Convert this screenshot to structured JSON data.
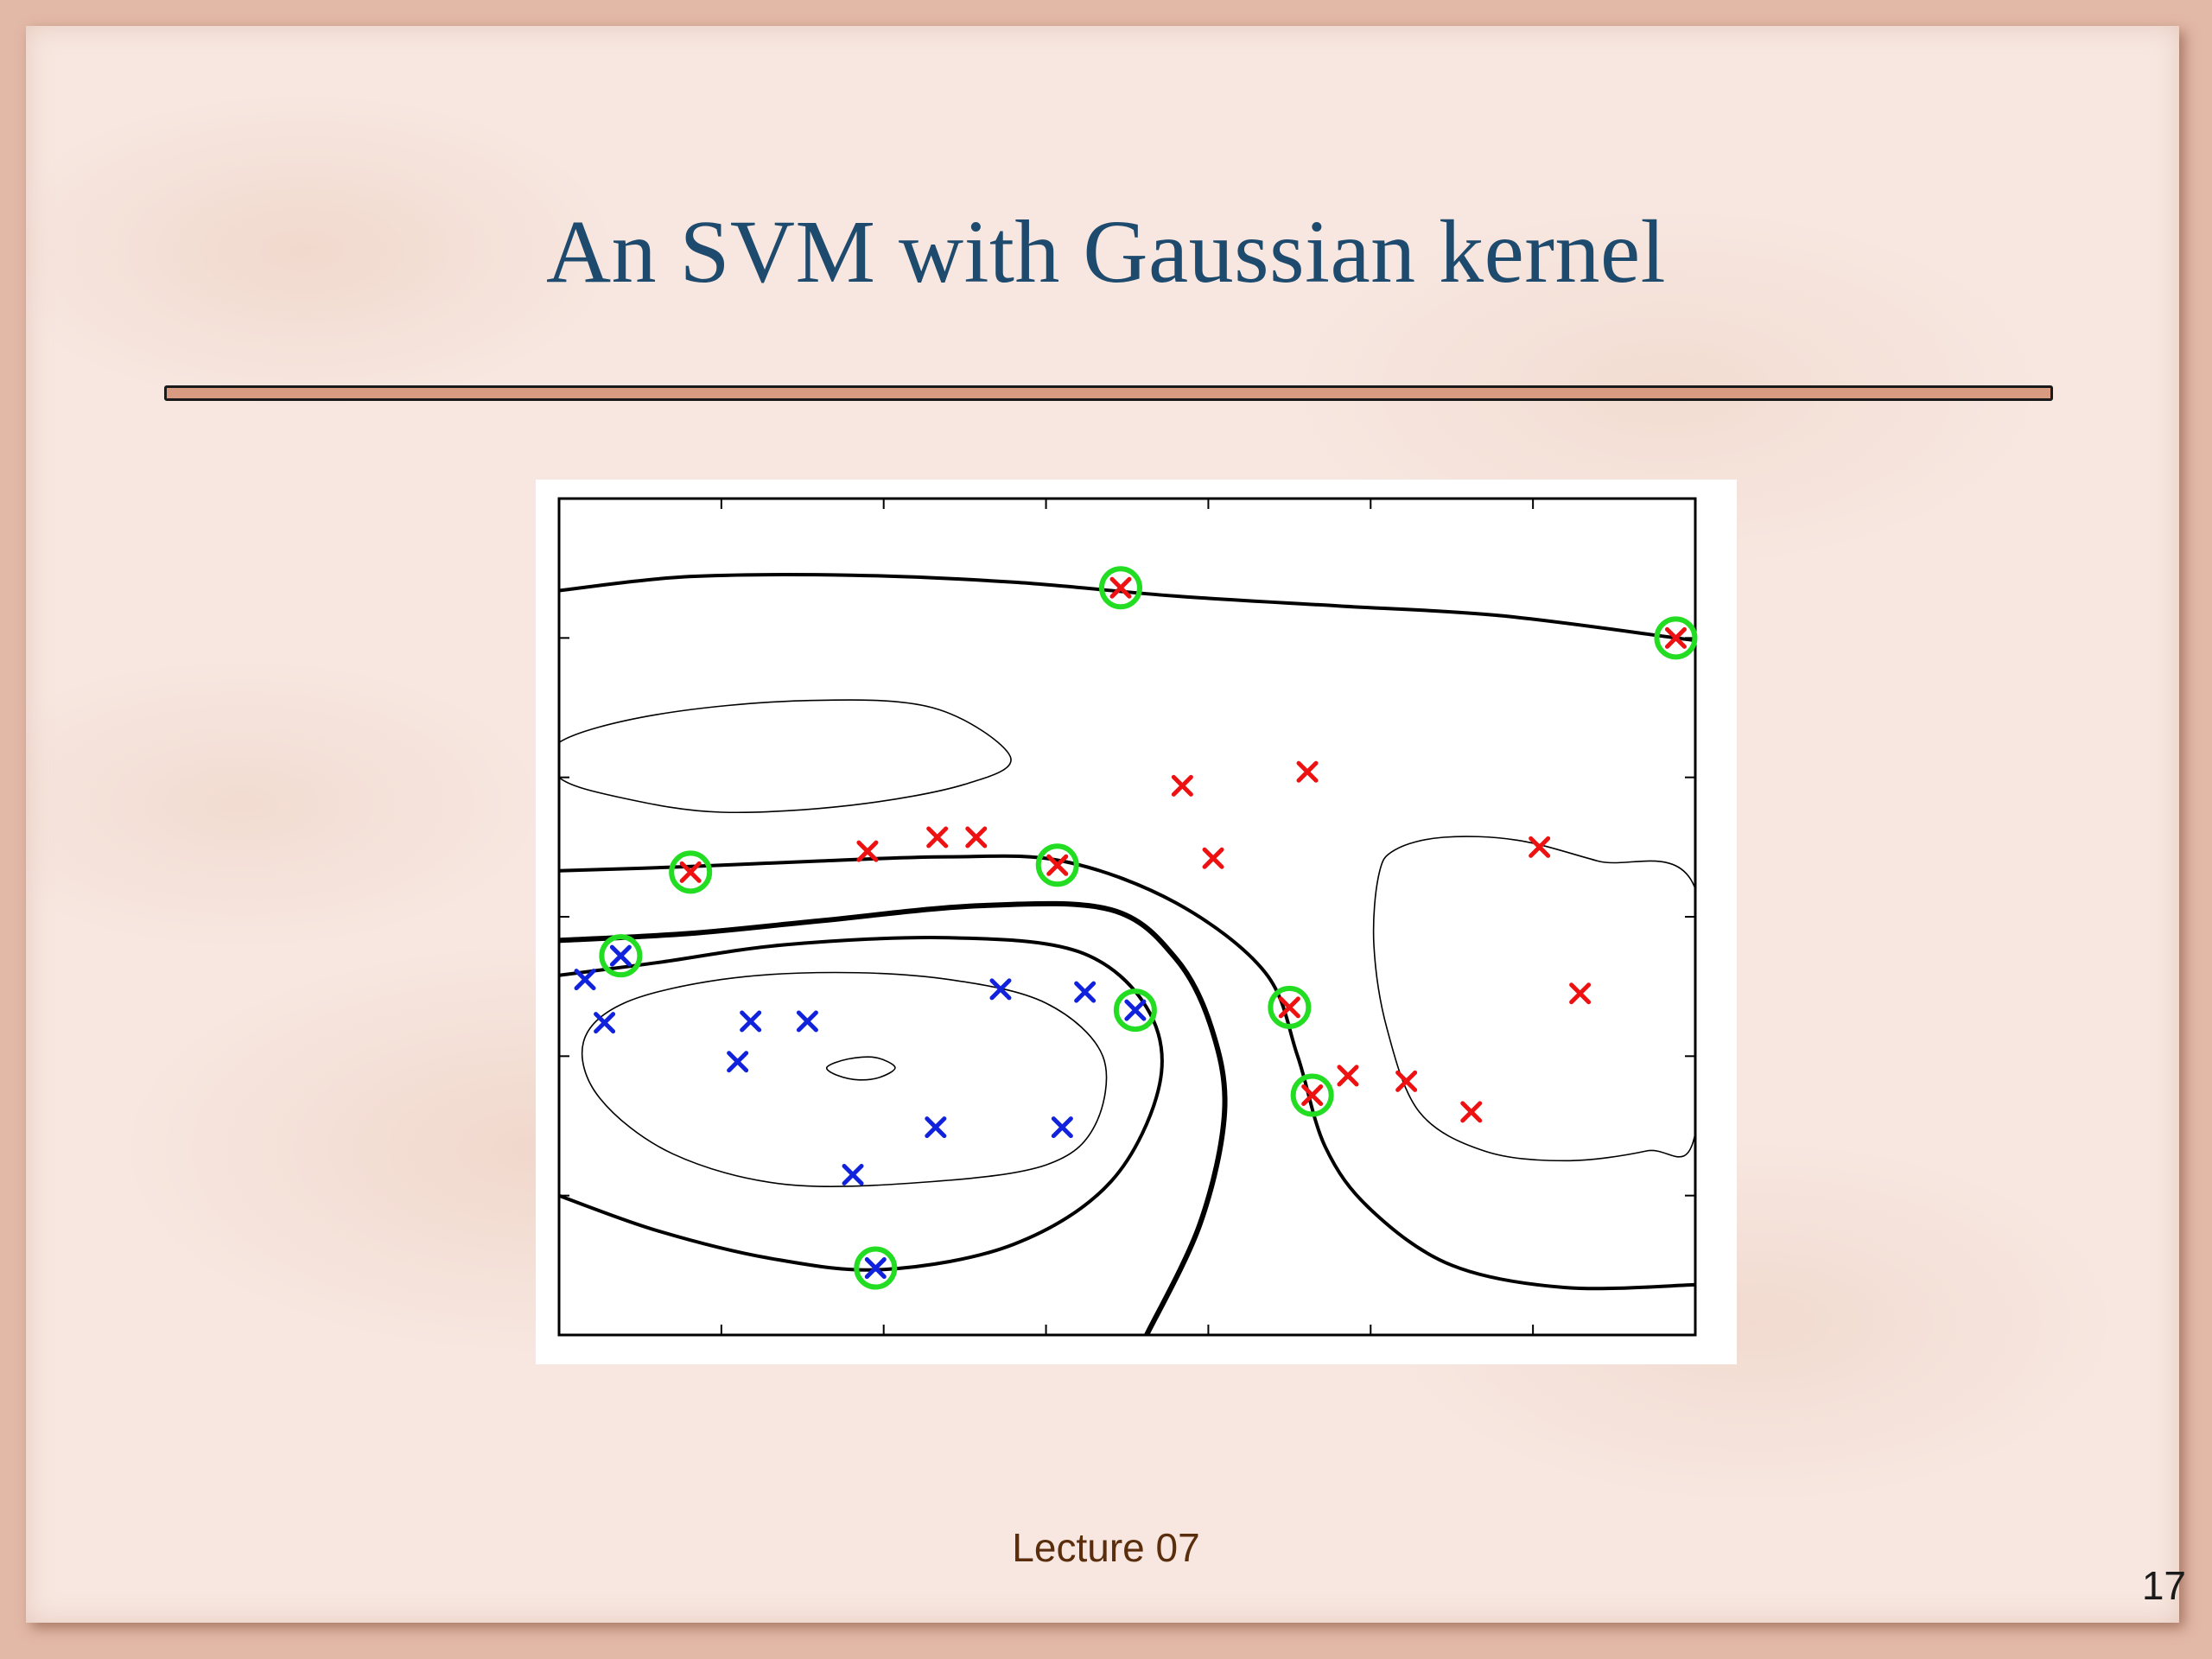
{
  "slide": {
    "title": "An SVM with Gaussian kernel",
    "footer": "Lecture 07",
    "page_number": "17"
  },
  "colors": {
    "title": "#1e4a6e",
    "rule_fill": "#d99a82",
    "class_positive": "#ee1111",
    "class_negative": "#1122dd",
    "support_vector_ring": "#22dd22",
    "contour": "#000000"
  },
  "chart_data": {
    "type": "scatter",
    "title": "",
    "xlabel": "",
    "ylabel": "",
    "xlim": [
      0,
      7
    ],
    "ylim": [
      0,
      6
    ],
    "grid": false,
    "tick_labels_shown": false,
    "x_ticks": [
      1,
      2,
      3,
      4,
      5,
      6
    ],
    "y_ticks": [
      1,
      2,
      3,
      4,
      5
    ],
    "series": [
      {
        "class": "positive",
        "marker": "x",
        "color": "#ee1111",
        "points": [
          [
            3.46,
            5.36
          ],
          [
            6.88,
            5.0
          ],
          [
            0.81,
            3.32
          ],
          [
            3.07,
            3.37
          ],
          [
            1.9,
            3.47
          ],
          [
            2.33,
            3.57
          ],
          [
            2.57,
            3.57
          ],
          [
            3.84,
            3.94
          ],
          [
            4.61,
            4.04
          ],
          [
            4.03,
            3.42
          ],
          [
            6.04,
            3.5
          ],
          [
            4.5,
            2.35
          ],
          [
            4.64,
            1.72
          ],
          [
            4.86,
            1.86
          ],
          [
            5.22,
            1.82
          ],
          [
            5.62,
            1.6
          ],
          [
            6.29,
            2.45
          ]
        ]
      },
      {
        "class": "negative",
        "marker": "x",
        "color": "#1122dd",
        "points": [
          [
            0.38,
            2.72
          ],
          [
            0.16,
            2.55
          ],
          [
            0.28,
            2.24
          ],
          [
            1.18,
            2.25
          ],
          [
            1.53,
            2.25
          ],
          [
            1.1,
            1.96
          ],
          [
            2.72,
            2.48
          ],
          [
            3.24,
            2.46
          ],
          [
            3.55,
            2.33
          ],
          [
            2.32,
            1.49
          ],
          [
            3.1,
            1.49
          ],
          [
            1.81,
            1.15
          ],
          [
            1.95,
            0.48
          ]
        ]
      }
    ],
    "support_vectors": [
      [
        3.46,
        5.36
      ],
      [
        6.88,
        5.0
      ],
      [
        0.81,
        3.32
      ],
      [
        3.07,
        3.37
      ],
      [
        0.38,
        2.72
      ],
      [
        3.55,
        2.33
      ],
      [
        4.5,
        2.35
      ],
      [
        4.64,
        1.72
      ],
      [
        1.95,
        0.48
      ]
    ],
    "contours": [
      {
        "level": "decision boundary",
        "weight": "thick",
        "points": [
          [
            3.62,
            0
          ],
          [
            3.95,
            0.8
          ],
          [
            4.1,
            1.6
          ],
          [
            4.02,
            2.2
          ],
          [
            3.8,
            2.7
          ],
          [
            3.4,
            3.05
          ],
          [
            2.6,
            3.08
          ],
          [
            1.6,
            2.97
          ],
          [
            0.8,
            2.88
          ],
          [
            0,
            2.83
          ]
        ]
      },
      {
        "level": "margin",
        "weight": "medium",
        "points": [
          [
            0,
            1.0
          ],
          [
            0.6,
            0.75
          ],
          [
            1.3,
            0.55
          ],
          [
            2.0,
            0.47
          ],
          [
            2.8,
            0.65
          ],
          [
            3.4,
            1.1
          ],
          [
            3.7,
            1.8
          ],
          [
            3.62,
            2.35
          ],
          [
            3.2,
            2.75
          ],
          [
            2.4,
            2.85
          ],
          [
            1.4,
            2.8
          ],
          [
            0.6,
            2.67
          ],
          [
            0,
            2.58
          ]
        ]
      },
      {
        "level": "margin",
        "weight": "medium",
        "points": [
          [
            0,
            3.33
          ],
          [
            0.8,
            3.36
          ],
          [
            1.6,
            3.4
          ],
          [
            2.4,
            3.43
          ],
          [
            3.1,
            3.4
          ],
          [
            3.8,
            3.1
          ],
          [
            4.35,
            2.6
          ],
          [
            4.55,
            2.0
          ],
          [
            4.72,
            1.35
          ],
          [
            5.0,
            0.9
          ],
          [
            5.5,
            0.5
          ],
          [
            6.2,
            0.34
          ],
          [
            7.0,
            0.36
          ]
        ]
      },
      {
        "level": "margin",
        "weight": "medium",
        "points": [
          [
            0,
            5.34
          ],
          [
            0.8,
            5.44
          ],
          [
            1.8,
            5.45
          ],
          [
            2.8,
            5.4
          ],
          [
            3.8,
            5.3
          ],
          [
            4.8,
            5.23
          ],
          [
            5.8,
            5.16
          ],
          [
            6.88,
            5.0
          ],
          [
            7.0,
            4.98
          ]
        ]
      },
      {
        "level": "inner",
        "weight": "thin",
        "closed": true,
        "points": [
          [
            0.15,
            2.1
          ],
          [
            0.4,
            2.38
          ],
          [
            1.0,
            2.55
          ],
          [
            1.7,
            2.6
          ],
          [
            2.4,
            2.55
          ],
          [
            3.0,
            2.38
          ],
          [
            3.35,
            2.0
          ],
          [
            3.3,
            1.5
          ],
          [
            3.0,
            1.22
          ],
          [
            2.3,
            1.1
          ],
          [
            1.4,
            1.08
          ],
          [
            0.7,
            1.3
          ],
          [
            0.25,
            1.7
          ]
        ]
      },
      {
        "level": "inner",
        "weight": "thin",
        "closed": true,
        "points": [
          [
            1.65,
            1.92
          ],
          [
            1.78,
            1.98
          ],
          [
            1.95,
            1.99
          ],
          [
            2.07,
            1.92
          ],
          [
            1.98,
            1.85
          ],
          [
            1.85,
            1.83
          ],
          [
            1.72,
            1.86
          ]
        ]
      },
      {
        "level": "inner",
        "weight": "thin",
        "closed": true,
        "points": [
          [
            0,
            4.25
          ],
          [
            0.6,
            4.45
          ],
          [
            1.5,
            4.55
          ],
          [
            2.3,
            4.5
          ],
          [
            2.78,
            4.15
          ],
          [
            2.5,
            3.95
          ],
          [
            1.8,
            3.8
          ],
          [
            1.0,
            3.75
          ],
          [
            0.4,
            3.85
          ],
          [
            0,
            4.0
          ]
        ]
      },
      {
        "level": "inner",
        "weight": "thin",
        "closed": true,
        "points": [
          [
            5.05,
            3.3
          ],
          [
            5.15,
            3.48
          ],
          [
            5.45,
            3.57
          ],
          [
            5.9,
            3.55
          ],
          [
            6.4,
            3.4
          ],
          [
            7.0,
            3.2
          ],
          [
            7.0,
            1.45
          ],
          [
            6.7,
            1.32
          ],
          [
            6.2,
            1.25
          ],
          [
            5.7,
            1.32
          ],
          [
            5.3,
            1.6
          ],
          [
            5.1,
            2.2
          ],
          [
            5.02,
            2.8
          ]
        ]
      }
    ]
  }
}
